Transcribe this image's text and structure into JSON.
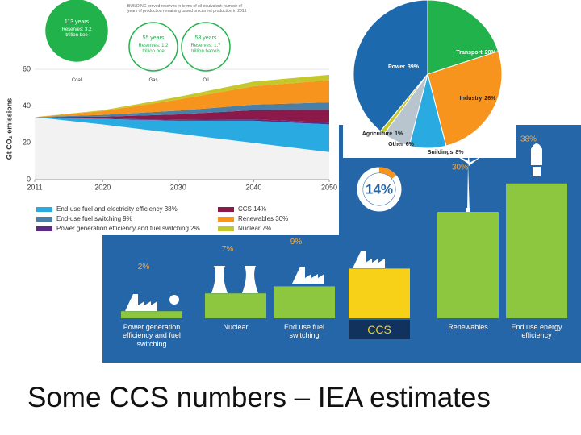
{
  "title": "Some CCS numbers – IEA estimates",
  "chart_data": [
    {
      "type": "area",
      "note": "BUILDING proved reserves in terms of oil-equivalent: number of years of production remaining based on current production in 2013",
      "bubbles": [
        {
          "years": "113 years",
          "reserves": "Reserves: 3.2 trillion boe",
          "label": "Coal"
        },
        {
          "years": "55 years",
          "reserves": "Reserves: 1.2 trillion boe",
          "label": "Gas"
        },
        {
          "years": "53 years",
          "reserves": "Reserves: 1.7 trillion barrels",
          "label": "Oil"
        }
      ],
      "y_label": "Gt CO₂ emissions",
      "x": [
        2011,
        2020,
        2030,
        2040,
        2050
      ],
      "xlim": [
        2011,
        2050
      ],
      "xticks": [
        2011,
        2020,
        2030,
        2040,
        2050
      ],
      "ylim": [
        0,
        60
      ],
      "yticks": [
        0,
        20,
        40,
        60
      ],
      "grid": true,
      "series": [
        {
          "color": "#f2f2f2",
          "values": [
            34,
            30,
            25,
            20,
            15
          ]
        },
        {
          "name": "End-use fuel and electricity efficiency 38%",
          "color": "#29abe2",
          "values": [
            0,
            3,
            7,
            12,
            15
          ]
        },
        {
          "name": "Power generation efficiency and fuel switching 2%",
          "color": "#5b2a86",
          "values": [
            0,
            0.2,
            0.5,
            0.8,
            1
          ]
        },
        {
          "name": "CCS 14%",
          "color": "#8b1a4a",
          "values": [
            0,
            1,
            3,
            5,
            7
          ]
        },
        {
          "name": "End-use fuel switching 9%",
          "color": "#4a7fa8",
          "values": [
            0,
            1,
            2,
            3,
            4
          ]
        },
        {
          "name": "Renewables 30%",
          "color": "#f7941d",
          "values": [
            0,
            2,
            6,
            10,
            12
          ]
        },
        {
          "name": "Nuclear 7%",
          "color": "#c5c82a",
          "values": [
            0,
            0.5,
            1.5,
            2.5,
            3
          ]
        }
      ]
    },
    {
      "type": "pie",
      "categories": [
        "Transport",
        "Industry",
        "Buildings",
        "Other",
        "Agriculture",
        "Power"
      ],
      "values": [
        20,
        26,
        8,
        6,
        1,
        39
      ],
      "value_labels": [
        "20%",
        "26%",
        "8%",
        "6%",
        "1%",
        "39%"
      ],
      "colors": [
        "#22b24c",
        "#f7941d",
        "#29abe2",
        "#b8c4ce",
        "#c5c82a",
        "#1c6aad"
      ]
    },
    {
      "type": "bar",
      "categories": [
        "Power generation efficiency and fuel switching",
        "Nuclear",
        "End use fuel switching",
        "CCS",
        "Renewables",
        "End use energy efficiency"
      ],
      "values": [
        2,
        7,
        9,
        14,
        30,
        38
      ],
      "value_labels": [
        "2%",
        "7%",
        "9%",
        "14%",
        "30%",
        "38%"
      ],
      "color": "#8dc63f",
      "highlight_color": "#f7d117"
    }
  ]
}
